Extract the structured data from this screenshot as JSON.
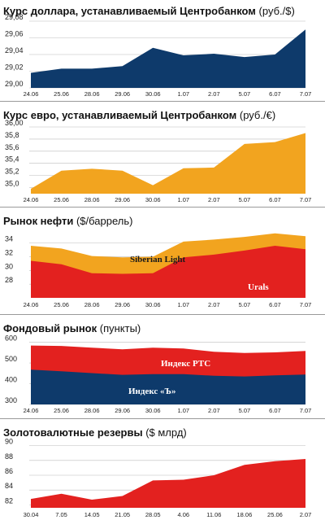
{
  "colors": {
    "navy": "#0e3a6b",
    "orange": "#f2a41f",
    "red": "#e3211f",
    "grid": "#bdbdbd"
  },
  "chart_data": [
    {
      "id": "usd",
      "type": "area",
      "title": "Курс доллара, устанавливаемый Центробанком",
      "unit": "(руб./$)",
      "categories": [
        "24.06",
        "25.06",
        "28.06",
        "29.06",
        "30.06",
        "1.07",
        "2.07",
        "5.07",
        "6.07",
        "7.07"
      ],
      "series": [
        {
          "values": [
            29.018,
            29.023,
            29.023,
            29.026,
            29.048,
            29.039,
            29.041,
            29.037,
            29.04,
            29.07
          ],
          "color": "#0e3a6b"
        }
      ],
      "ylim": [
        29.0,
        29.08
      ],
      "yticks": [
        "29,08",
        "29,06",
        "29,04",
        "29,02",
        "29,00"
      ],
      "grid": true
    },
    {
      "id": "eur",
      "type": "area",
      "title": "Курс евро, устанавливаемый Центробанком",
      "unit": "(руб./€)",
      "categories": [
        "24.06",
        "25.06",
        "28.06",
        "29.06",
        "30.06",
        "1.07",
        "2.07",
        "5.07",
        "6.07",
        "7.07"
      ],
      "series": [
        {
          "values": [
            34.98,
            35.28,
            35.31,
            35.28,
            35.04,
            35.32,
            35.33,
            35.72,
            35.75,
            35.9
          ],
          "color": "#f2a41f"
        }
      ],
      "ylim": [
        34.9,
        36.0
      ],
      "yticks": [
        "36,00",
        "35,8",
        "35,6",
        "35,4",
        "35,2",
        "35,0"
      ],
      "grid": true
    },
    {
      "id": "oil",
      "type": "area",
      "title": "Рынок нефти",
      "unit": "($/баррель)",
      "categories": [
        "24.06",
        "25.06",
        "28.06",
        "29.06",
        "30.06",
        "1.07",
        "2.07",
        "5.07",
        "6.07",
        "7.07"
      ],
      "series": [
        {
          "name": "Siberian Light",
          "values": [
            33.6,
            33.2,
            32.1,
            31.9,
            32.0,
            34.2,
            34.5,
            34.9,
            35.4,
            35.0
          ],
          "color": "#f2a41f"
        },
        {
          "name": "Urals",
          "values": [
            31.4,
            30.9,
            29.6,
            29.5,
            29.6,
            31.9,
            32.3,
            32.9,
            33.6,
            33.1
          ],
          "color": "#e3211f"
        }
      ],
      "ylim": [
        26,
        35.5
      ],
      "yticks": [
        "34",
        "32",
        "30",
        "28"
      ],
      "grid": true
    },
    {
      "id": "stock",
      "type": "area",
      "title": "Фондовый рынок",
      "unit": "(пункты)",
      "categories": [
        "24.06",
        "25.06",
        "28.06",
        "29.06",
        "30.06",
        "1.07",
        "2.07",
        "5.07",
        "6.07",
        "7.07"
      ],
      "series": [
        {
          "name": "Индекс РТС",
          "values": [
            584,
            582,
            574,
            566,
            574,
            570,
            554,
            548,
            551,
            558
          ],
          "color": "#e3211f"
        },
        {
          "name": "Индекс «Ъ»",
          "values": [
            468,
            460,
            451,
            443,
            446,
            446,
            438,
            435,
            440,
            444
          ],
          "color": "#0e3a6b"
        }
      ],
      "ylim": [
        300,
        610
      ],
      "yticks": [
        "600",
        "500",
        "400",
        "300"
      ],
      "grid": true
    },
    {
      "id": "reserves",
      "type": "area",
      "title": "Золотовалютные резервы",
      "unit": "($ млрд)",
      "categories": [
        "30.04",
        "7.05",
        "14.05",
        "21.05",
        "28.05",
        "4.06",
        "11.06",
        "18.06",
        "25.06",
        "2.07"
      ],
      "series": [
        {
          "values": [
            82.8,
            83.5,
            82.7,
            83.2,
            85.3,
            85.4,
            86.0,
            87.4,
            87.9,
            88.2
          ],
          "color": "#e3211f"
        }
      ],
      "ylim": [
        81.6,
        90.4
      ],
      "yticks": [
        "90",
        "88",
        "86",
        "84",
        "82"
      ],
      "grid": true
    }
  ]
}
